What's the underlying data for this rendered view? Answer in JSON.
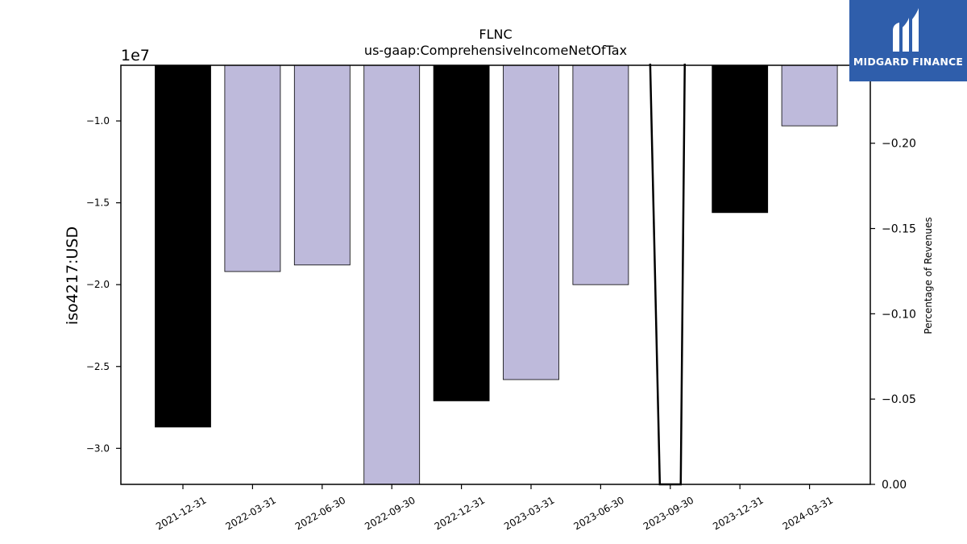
{
  "chart_data": {
    "type": "bar",
    "title": "FLNC",
    "subtitle": "us-gaap:ComprehensiveIncomeNetOfTax",
    "ylabel": "iso4217:USD",
    "y_offset_label": "1e7",
    "y2label": "Percentage of Revenues",
    "categories": [
      "2021-12-31",
      "2022-03-31",
      "2022-06-30",
      "2022-09-30",
      "2022-12-31",
      "2023-03-31",
      "2023-06-30",
      "2023-09-30",
      "2023-12-31",
      "2024-03-31"
    ],
    "values": [
      -28700000,
      -19200000,
      -18800000,
      -32500000,
      -27100000,
      -25800000,
      -20000000,
      null,
      -15600000,
      -10300000
    ],
    "bar_colors": [
      "#000000",
      "#bebadb",
      "#bebadb",
      "#bebadb",
      "#000000",
      "#bebadb",
      "#bebadb",
      "#bebadb",
      "#000000",
      "#bebadb"
    ],
    "ylim": [
      -32200000,
      -6600000
    ],
    "yticks": [
      -10000000,
      -15000000,
      -20000000,
      -25000000,
      -30000000
    ],
    "ytick_labels": [
      "−1.0",
      "−1.5",
      "−2.0",
      "−2.5",
      "−3.0"
    ],
    "y2lim": [
      0.0,
      -0.2457
    ],
    "y2ticks": [
      0.0,
      -0.05,
      -0.1,
      -0.15,
      -0.2
    ],
    "y2tick_labels": [
      "0.00",
      "−0.05",
      "−0.10",
      "−0.15",
      "−0.20"
    ],
    "line_series": {
      "x_index": [
        6.85,
        7.15
      ],
      "values": [
        0.0,
        0.0
      ]
    },
    "grid": false,
    "legend": "none"
  },
  "logo": {
    "text": "MIDGARD FINANCE"
  }
}
